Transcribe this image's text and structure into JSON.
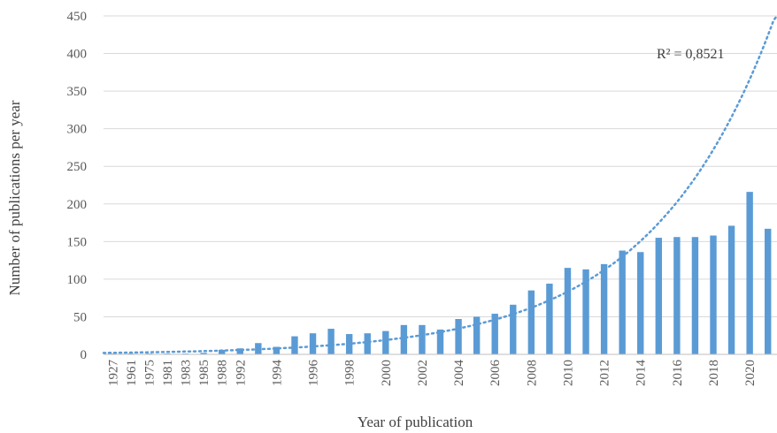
{
  "chart_data": {
    "type": "bar",
    "xlabel": "Year of publication",
    "ylabel": "Number of publications  per year",
    "ylim": [
      0,
      450
    ],
    "yticks": [
      0,
      50,
      100,
      150,
      200,
      250,
      300,
      350,
      400,
      450
    ],
    "grid": true,
    "x_tick_labels": [
      "1927",
      "1961",
      "1975",
      "1981",
      "1983",
      "1985",
      "1988",
      "1992",
      "1994",
      "1996",
      "1998",
      "2000",
      "2002",
      "2004",
      "2006",
      "2008",
      "2010",
      "2012",
      "2014",
      "2016",
      "2018",
      "2020"
    ],
    "categories": [
      "1927",
      "1961",
      "1975",
      "1981",
      "1983",
      "1985",
      "1988",
      "1992",
      "1993",
      "1994",
      "1995",
      "1996",
      "1997",
      "1998",
      "1999",
      "2000",
      "2001",
      "2002",
      "2003",
      "2004",
      "2005",
      "2006",
      "2007",
      "2008",
      "2009",
      "2010",
      "2011",
      "2012",
      "2013",
      "2014",
      "2015",
      "2016",
      "2017",
      "2018",
      "2019",
      "2020",
      "2021"
    ],
    "values": [
      1,
      1,
      1,
      1,
      1,
      2,
      6,
      8,
      15,
      10,
      24,
      28,
      34,
      27,
      28,
      31,
      39,
      39,
      33,
      47,
      50,
      54,
      66,
      85,
      94,
      115,
      113,
      120,
      138,
      136,
      155,
      156,
      156,
      158,
      171,
      216,
      167
    ],
    "series_color": "#5b9bd5",
    "trendline": {
      "type": "exponential",
      "style": "dotted",
      "r2_label": "R² = 0,8521"
    }
  }
}
